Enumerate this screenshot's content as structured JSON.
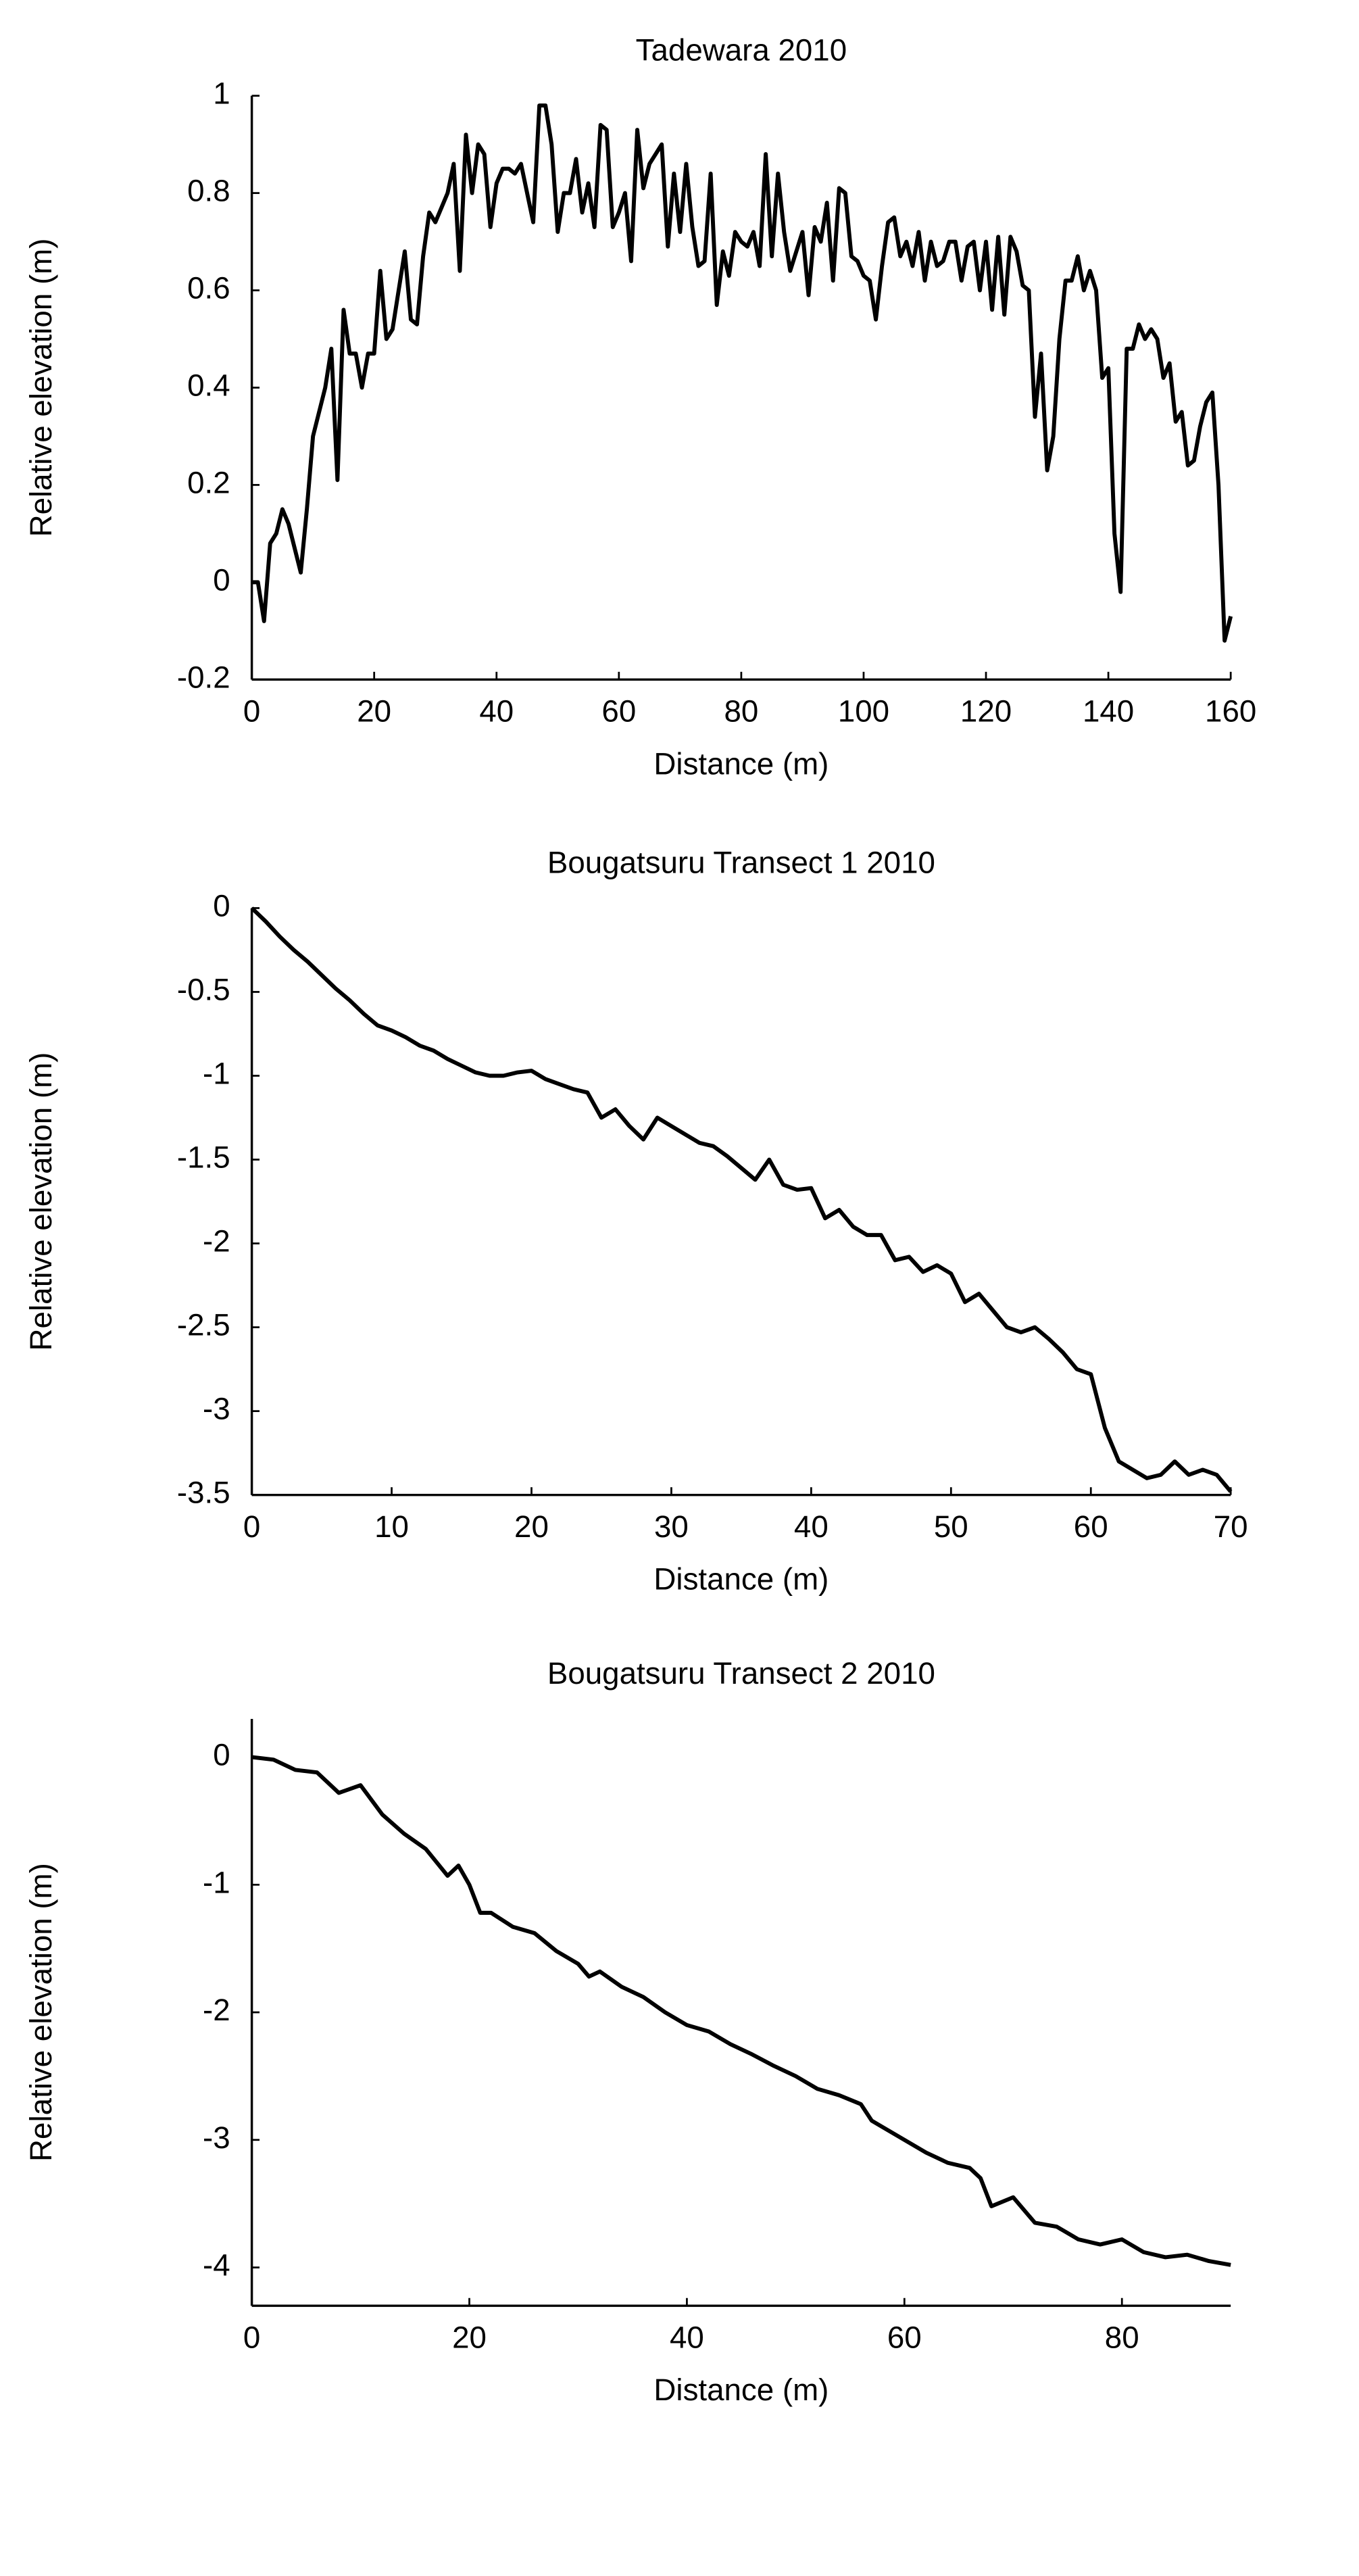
{
  "chart_data": [
    {
      "type": "line",
      "title": "Tadewara 2010",
      "xlabel": "Distance (m)",
      "ylabel": "Relative elevation (m)",
      "color": "#000000",
      "x": [
        0,
        1,
        2,
        3,
        4,
        5,
        6,
        7,
        8,
        9,
        10,
        11,
        12,
        13,
        14,
        15,
        16,
        17,
        18,
        19,
        20,
        21,
        22,
        23,
        24,
        25,
        26,
        27,
        28,
        29,
        30,
        31,
        32,
        33,
        34,
        35,
        36,
        37,
        38,
        39,
        40,
        41,
        42,
        43,
        44,
        45,
        46,
        47,
        48,
        49,
        50,
        51,
        52,
        53,
        54,
        55,
        56,
        57,
        58,
        59,
        60,
        61,
        62,
        63,
        64,
        65,
        66,
        67,
        68,
        69,
        70,
        71,
        72,
        73,
        74,
        75,
        76,
        77,
        78,
        79,
        80,
        81,
        82,
        83,
        84,
        85,
        86,
        87,
        88,
        89,
        90,
        91,
        92,
        93,
        94,
        95,
        96,
        97,
        98,
        99,
        100,
        101,
        102,
        103,
        104,
        105,
        106,
        107,
        108,
        109,
        110,
        111,
        112,
        113,
        114,
        115,
        116,
        117,
        118,
        119,
        120,
        121,
        122,
        123,
        124,
        125,
        126,
        127,
        128,
        129,
        130,
        131,
        132,
        133,
        134,
        135,
        136,
        137,
        138,
        139,
        140,
        141,
        142,
        143,
        144,
        145,
        146,
        147,
        148,
        149,
        150,
        151,
        152,
        153,
        154,
        155,
        156,
        157,
        158,
        159,
        160
      ],
      "values": [
        0,
        0,
        -0.08,
        0.08,
        0.1,
        0.15,
        0.12,
        0.07,
        0.02,
        0.15,
        0.3,
        0.35,
        0.4,
        0.48,
        0.21,
        0.56,
        0.47,
        0.47,
        0.4,
        0.47,
        0.47,
        0.64,
        0.5,
        0.52,
        0.6,
        0.68,
        0.54,
        0.53,
        0.67,
        0.76,
        0.74,
        0.77,
        0.8,
        0.86,
        0.64,
        0.92,
        0.8,
        0.9,
        0.88,
        0.73,
        0.82,
        0.85,
        0.85,
        0.84,
        0.86,
        0.8,
        0.74,
        0.98,
        0.98,
        0.9,
        0.72,
        0.8,
        0.8,
        0.87,
        0.76,
        0.82,
        0.73,
        0.94,
        0.93,
        0.73,
        0.76,
        0.8,
        0.66,
        0.93,
        0.81,
        0.86,
        0.88,
        0.9,
        0.69,
        0.84,
        0.72,
        0.86,
        0.73,
        0.65,
        0.66,
        0.84,
        0.57,
        0.68,
        0.63,
        0.72,
        0.7,
        0.69,
        0.72,
        0.65,
        0.88,
        0.67,
        0.84,
        0.72,
        0.64,
        0.68,
        0.72,
        0.59,
        0.73,
        0.7,
        0.78,
        0.62,
        0.81,
        0.8,
        0.67,
        0.66,
        0.63,
        0.62,
        0.54,
        0.65,
        0.74,
        0.75,
        0.67,
        0.7,
        0.65,
        0.72,
        0.62,
        0.7,
        0.65,
        0.66,
        0.7,
        0.7,
        0.62,
        0.69,
        0.7,
        0.6,
        0.7,
        0.56,
        0.71,
        0.55,
        0.71,
        0.68,
        0.61,
        0.6,
        0.34,
        0.47,
        0.23,
        0.3,
        0.5,
        0.62,
        0.62,
        0.67,
        0.6,
        0.64,
        0.6,
        0.42,
        0.44,
        0.1,
        -0.02,
        0.48,
        0.48,
        0.53,
        0.5,
        0.52,
        0.5,
        0.42,
        0.45,
        0.33,
        0.35,
        0.24,
        0.25,
        0.32,
        0.37,
        0.39,
        0.2,
        -0.12,
        -0.07
      ],
      "xlim": [
        0,
        160
      ],
      "xticks": [
        0,
        20,
        40,
        60,
        80,
        100,
        120,
        140,
        160
      ],
      "ylim": [
        -0.2,
        1
      ],
      "yticks": [
        -0.2,
        0,
        0.2,
        0.4,
        0.6,
        0.8,
        1
      ]
    },
    {
      "type": "line",
      "title": "Bougatsuru Transect 1 2010",
      "xlabel": "Distance (m)",
      "ylabel": "Relative elevation (m)",
      "color": "#000000",
      "x": [
        0,
        1,
        2,
        3,
        4,
        5,
        6,
        7,
        8,
        9,
        10,
        11,
        12,
        13,
        14,
        15,
        16,
        17,
        18,
        19,
        20,
        21,
        22,
        23,
        24,
        25,
        26,
        27,
        28,
        29,
        30,
        31,
        32,
        33,
        34,
        35,
        36,
        37,
        38,
        39,
        40,
        41,
        42,
        43,
        44,
        45,
        46,
        47,
        48,
        49,
        50,
        51,
        52,
        53,
        54,
        55,
        56,
        57,
        58,
        59,
        60,
        61,
        62,
        63,
        64,
        65,
        66,
        67,
        68,
        69,
        70
      ],
      "values": [
        0,
        -0.08,
        -0.17,
        -0.25,
        -0.32,
        -0.4,
        -0.48,
        -0.55,
        -0.63,
        -0.7,
        -0.73,
        -0.77,
        -0.82,
        -0.85,
        -0.9,
        -0.94,
        -0.98,
        -1,
        -1,
        -0.98,
        -0.97,
        -1.02,
        -1.05,
        -1.08,
        -1.1,
        -1.25,
        -1.2,
        -1.3,
        -1.38,
        -1.25,
        -1.3,
        -1.35,
        -1.4,
        -1.42,
        -1.48,
        -1.55,
        -1.62,
        -1.5,
        -1.65,
        -1.68,
        -1.67,
        -1.85,
        -1.8,
        -1.9,
        -1.95,
        -1.95,
        -2.1,
        -2.08,
        -2.17,
        -2.13,
        -2.18,
        -2.35,
        -2.3,
        -2.4,
        -2.5,
        -2.53,
        -2.5,
        -2.57,
        -2.65,
        -2.75,
        -2.78,
        -3.1,
        -3.3,
        -3.35,
        -3.4,
        -3.38,
        -3.3,
        -3.38,
        -3.35,
        -3.38,
        -3.48
      ],
      "xlim": [
        0,
        70
      ],
      "xticks": [
        0,
        10,
        20,
        30,
        40,
        50,
        60,
        70
      ],
      "ylim": [
        -3.5,
        0
      ],
      "yticks": [
        -3.5,
        -3,
        -2.5,
        -2,
        -1.5,
        -1,
        -0.5,
        0
      ]
    },
    {
      "type": "line",
      "title": "Bougatsuru Transect 2 2010",
      "xlabel": "Distance (m)",
      "ylabel": "Relative elevation (m)",
      "color": "#000000",
      "x": [
        0,
        2,
        4,
        6,
        8,
        10,
        12,
        14,
        16,
        18,
        19,
        20,
        21,
        22,
        24,
        26,
        28,
        30,
        31,
        32,
        34,
        36,
        38,
        40,
        42,
        44,
        46,
        48,
        50,
        52,
        54,
        56,
        57,
        58,
        60,
        62,
        64,
        66,
        67,
        68,
        70,
        72,
        74,
        76,
        78,
        80,
        82,
        84,
        86,
        88,
        90
      ],
      "values": [
        0,
        -0.02,
        -0.1,
        -0.12,
        -0.28,
        -0.22,
        -0.45,
        -0.6,
        -0.72,
        -0.93,
        -0.85,
        -1,
        -1.22,
        -1.22,
        -1.33,
        -1.38,
        -1.52,
        -1.62,
        -1.72,
        -1.68,
        -1.8,
        -1.88,
        -2,
        -2.1,
        -2.15,
        -2.25,
        -2.33,
        -2.42,
        -2.5,
        -2.6,
        -2.65,
        -2.72,
        -2.85,
        -2.9,
        -3,
        -3.1,
        -3.18,
        -3.22,
        -3.3,
        -3.52,
        -3.45,
        -3.65,
        -3.68,
        -3.78,
        -3.82,
        -3.78,
        -3.88,
        -3.92,
        -3.9,
        -3.95,
        -3.98
      ],
      "xlim": [
        0,
        90
      ],
      "xticks": [
        0,
        20,
        40,
        60,
        80
      ],
      "ylim": [
        -4.3,
        0.3
      ],
      "yticks": [
        -4,
        -3,
        -2,
        -1,
        0
      ]
    }
  ]
}
